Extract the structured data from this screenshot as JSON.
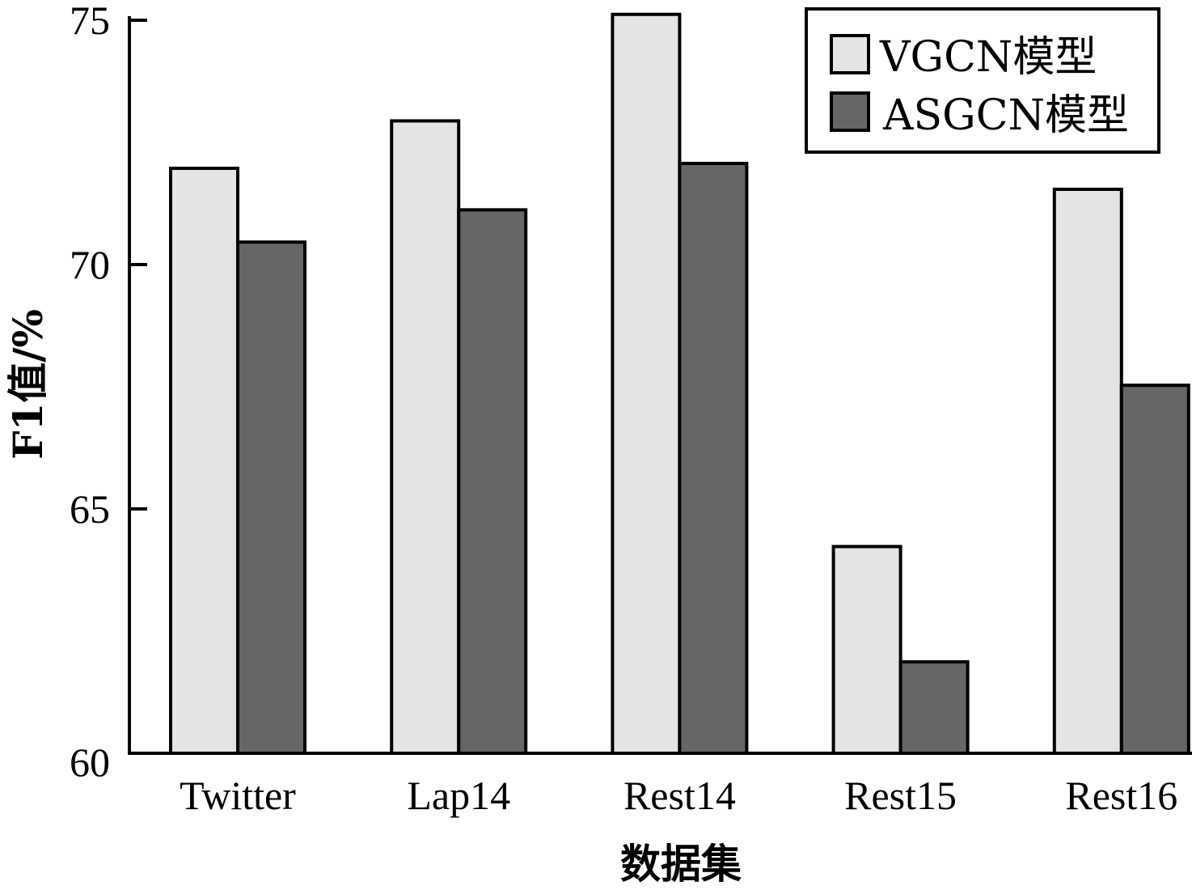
{
  "chart_data": {
    "type": "bar",
    "categories": [
      "Twitter",
      "Lap14",
      "Rest14",
      "Rest15",
      "Rest16"
    ],
    "series": [
      {
        "name": "VGCN模型",
        "values": [
          71.97,
          72.94,
          75.12,
          64.23,
          71.54
        ],
        "color": "#e4e4e4"
      },
      {
        "name": "ASGCN模型",
        "values": [
          70.46,
          71.12,
          72.07,
          61.87,
          67.53
        ],
        "color": "#666666"
      }
    ],
    "xlabel": "数据集",
    "ylabel": "F1值/%",
    "ylim": [
      60,
      75
    ],
    "yticks": [
      60,
      65,
      70,
      75
    ],
    "legend_position": "top-right",
    "grid": false
  }
}
